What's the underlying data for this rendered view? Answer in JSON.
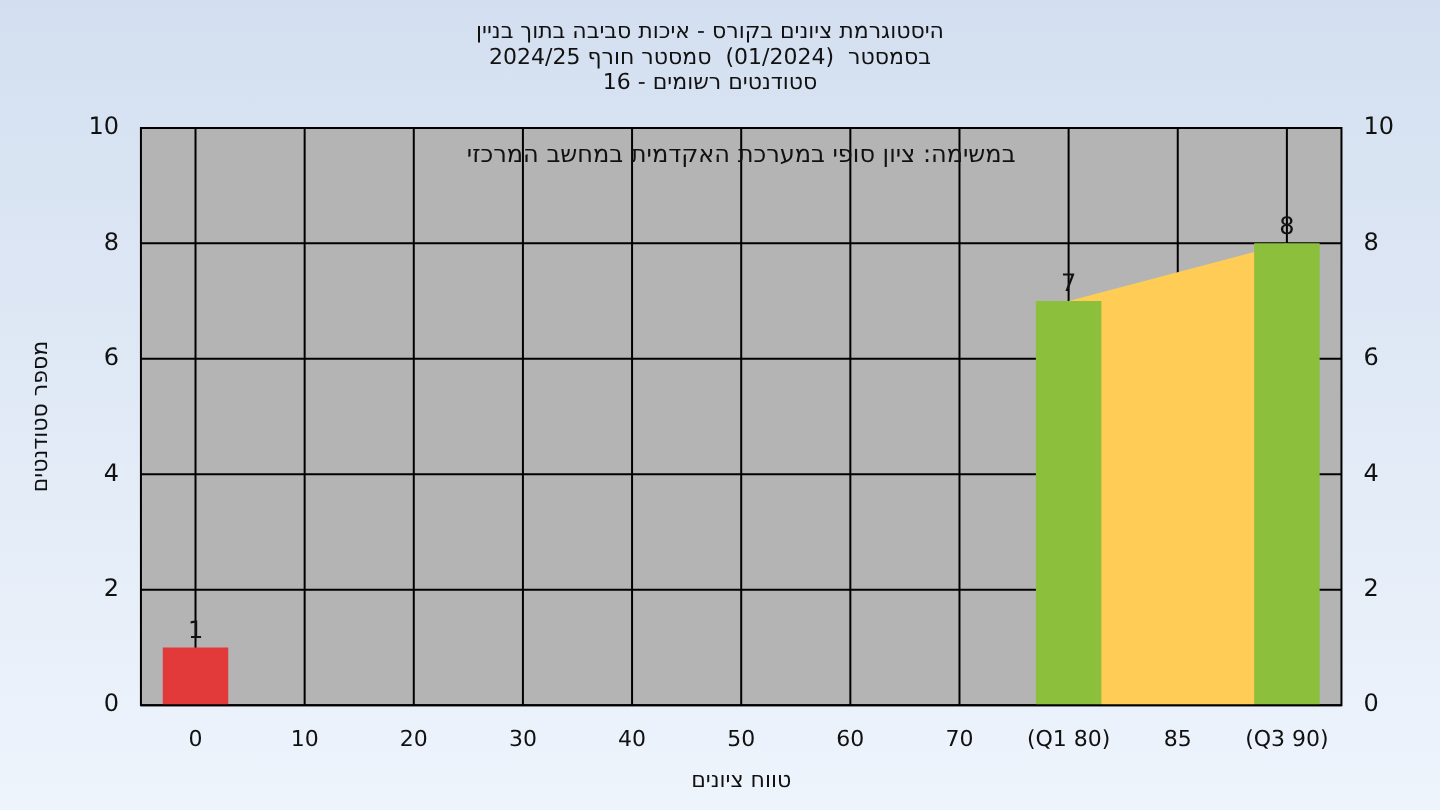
{
  "chart_data": {
    "type": "bar",
    "title": [
      "היסטוגרמת ציונים בקורס - איכות סביבה בתוך בניין",
      "בסמסטר  (01/2024)  סמסטר חורף 2024/25",
      "סטודנטים רשומים - 16"
    ],
    "xlabel": "טווח ציונים",
    "ylabel": "מספר סטודנטים",
    "annotations": [
      "במשימה: ציון סופי במערכת האקדמית במחשב המרכזי"
    ],
    "categories": [
      "0",
      "10",
      "20",
      "30",
      "40",
      "50",
      "60",
      "70",
      "(Q1 80)",
      "85",
      "(Q3 90)"
    ],
    "values": [
      1,
      0,
      0,
      0,
      0,
      0,
      0,
      0,
      7,
      0,
      8
    ],
    "colors": [
      "#e23a3a",
      "#8cbf3c",
      "#8cbf3c",
      "#8cbf3c",
      "#8cbf3c",
      "#8cbf3c",
      "#8cbf3c",
      "#8cbf3c",
      "#8cbf3c",
      "#8cbf3c",
      "#8cbf3c"
    ],
    "value_labels": [
      "1",
      null,
      null,
      null,
      null,
      null,
      null,
      null,
      "7",
      null,
      "8"
    ],
    "bands": [
      {
        "axis": "x",
        "from": "(Q1 80)",
        "to": "(Q3 90)",
        "color": "#ffcc55"
      }
    ],
    "ylim": [
      0,
      10
    ],
    "yticks": [
      0,
      2,
      4,
      6,
      8,
      10
    ],
    "y2lim": [
      0,
      10
    ],
    "y2ticks": [
      0,
      2,
      4,
      6,
      8,
      10
    ],
    "grid": true,
    "legend": false
  }
}
